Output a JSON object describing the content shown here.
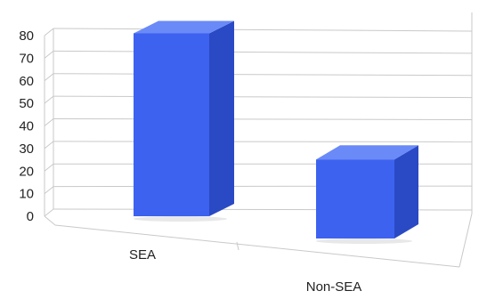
{
  "chart_data": {
    "type": "bar",
    "title": "",
    "xlabel": "",
    "ylabel": "",
    "categories": [
      "SEA",
      "Non-SEA"
    ],
    "series": [
      {
        "values": [
          81,
          35
        ]
      }
    ],
    "ylim": [
      0,
      80
    ],
    "yticks": [
      0,
      10,
      20,
      30,
      40,
      50,
      60,
      70,
      80
    ],
    "grid": true,
    "legend": "none",
    "style": "3d-column",
    "colors": {
      "bar_front": "#3d62f0",
      "bar_side": "#2a49c4",
      "bar_top": "#6a8af8",
      "grid": "#c9c9c9",
      "text": "#222222"
    }
  }
}
